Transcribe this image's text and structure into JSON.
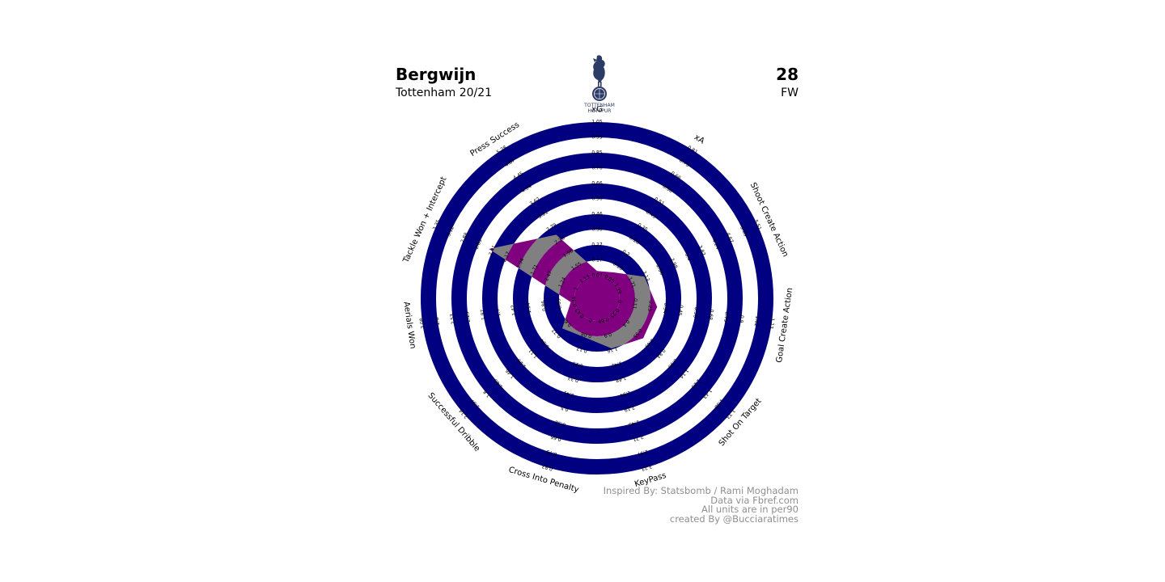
{
  "player": {
    "name": "Bergwijn",
    "team_season": "Tottenham 20/21",
    "number": "28",
    "position": "FW"
  },
  "logo": {
    "icon": "tottenham-hotspur-crest-icon",
    "text_line1": "TOTTENHAM",
    "text_line2": "HOTSPUR",
    "color": "#2c3a66"
  },
  "credits": [
    "Inspired By: Statsbomb / Rami Moghadam",
    "Data via Fbref.com",
    "All units are in per90",
    "created By @Bucciaratimes"
  ],
  "colors": {
    "ring": "#000080",
    "radar_primary": "#800080",
    "radar_alt": "#808080",
    "credits_text": "#8f8f8f"
  },
  "chart_data": {
    "type": "radar",
    "params": [
      "xG",
      "xA",
      "Shoot Create Action",
      "Goal Create Action",
      "Shot On Target",
      "KeyPass",
      "Cross Into Penalty",
      "Successful Dribble",
      "Aerials Won",
      "Tackle Won + Intercept",
      "Press Success"
    ],
    "ranges": [
      [
        0.07,
        1.05
      ],
      [
        0.05,
        0.81
      ],
      [
        1.29,
        5.51
      ],
      [
        0.0,
        1.13
      ],
      [
        0.25,
        1.73
      ],
      [
        0.64,
        3.23
      ],
      [
        0.0,
        0.83
      ],
      [
        0.43,
        2.14
      ],
      [
        0.31,
        3.08
      ],
      [
        1.0,
        3.35
      ],
      [
        1.13,
        5.28
      ]
    ],
    "values": [
      0.1,
      0.09,
      2.1,
      0.28,
      0.62,
      1.14,
      0.1,
      0.69,
      0.38,
      2.47,
      2.56
    ],
    "rings": 5
  }
}
